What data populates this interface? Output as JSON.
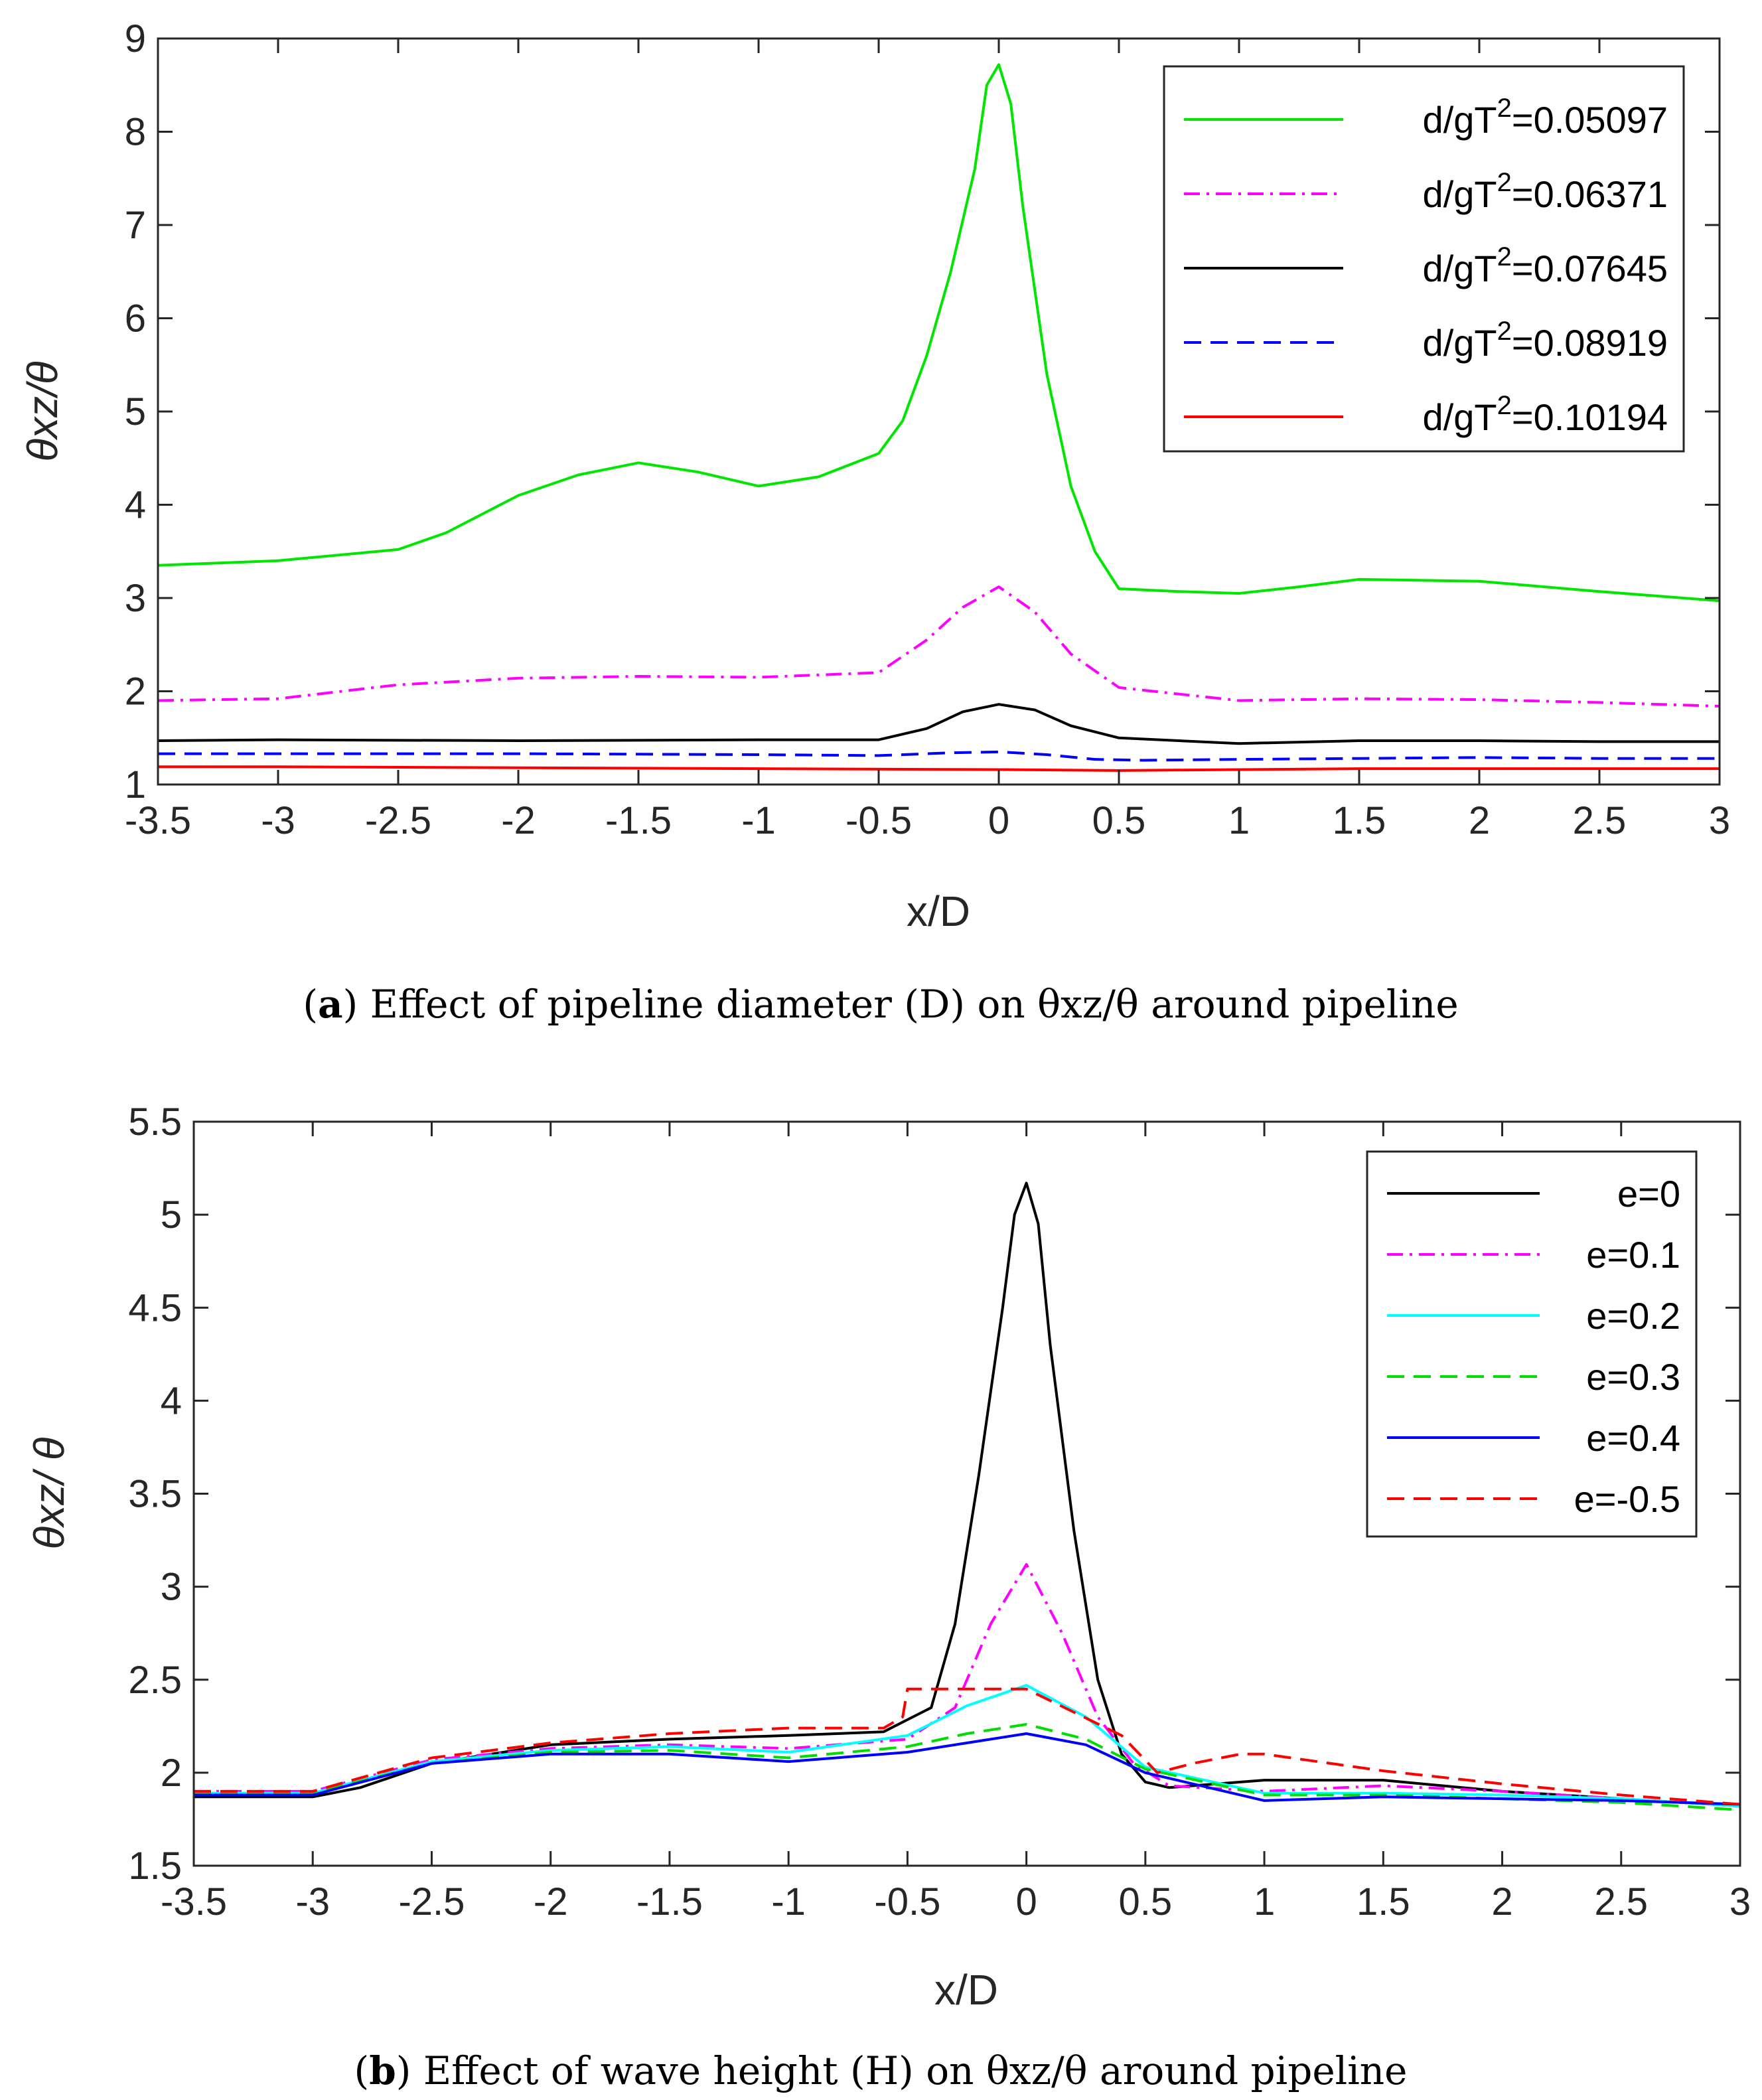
{
  "chart_data": [
    {
      "type": "line",
      "panel": "a",
      "caption_letter": "a",
      "caption_text": "Effect of pipeline diameter (D) on θxz/θ around pipeline",
      "xlabel": "x/D",
      "ylabel": "θxz/θ",
      "xlim": [
        -3.5,
        3
      ],
      "ylim": [
        1,
        9
      ],
      "xticks": [
        -3.5,
        -3,
        -2.5,
        -2,
        -1.5,
        -1,
        -0.5,
        0,
        0.5,
        1,
        1.5,
        2,
        2.5,
        3
      ],
      "yticks": [
        1,
        2,
        3,
        4,
        5,
        6,
        7,
        8,
        9
      ],
      "xtick_labels": [
        "-3.5",
        "-3",
        "-2.5",
        "-2",
        "-1.5",
        "-1",
        "-0.5",
        "0",
        "0.5",
        "1",
        "1.5",
        "2",
        "2.5",
        "3"
      ],
      "ytick_labels": [
        "1",
        "2",
        "3",
        "4",
        "5",
        "6",
        "7",
        "8",
        "9"
      ],
      "legend_position": "top-right",
      "series": [
        {
          "name": "d/gT²=0.05097",
          "label_prefix": "d/gT",
          "label_sup": "2",
          "label_suffix": "=0.05097",
          "color": "#00e600",
          "dash": "solid",
          "x": [
            -3.5,
            -3.0,
            -2.5,
            -2.3,
            -2.0,
            -1.75,
            -1.5,
            -1.25,
            -1.0,
            -0.75,
            -0.5,
            -0.4,
            -0.3,
            -0.2,
            -0.1,
            -0.05,
            0.0,
            0.05,
            0.1,
            0.2,
            0.3,
            0.4,
            0.5,
            0.75,
            1.0,
            1.25,
            1.5,
            2.0,
            2.5,
            3.0
          ],
          "y": [
            3.35,
            3.4,
            3.52,
            3.7,
            4.1,
            4.32,
            4.45,
            4.35,
            4.2,
            4.3,
            4.55,
            4.9,
            5.6,
            6.5,
            7.6,
            8.5,
            8.72,
            8.3,
            7.2,
            5.4,
            4.2,
            3.5,
            3.1,
            3.07,
            3.05,
            3.12,
            3.2,
            3.18,
            3.07,
            2.97
          ]
        },
        {
          "name": "d/gT²=0.06371",
          "label_prefix": "d/gT",
          "label_sup": "2",
          "label_suffix": "=0.06371",
          "color": "#ff00ff",
          "dash": "dashdot",
          "x": [
            -3.5,
            -3.0,
            -2.5,
            -2.0,
            -1.5,
            -1.0,
            -0.5,
            -0.3,
            -0.15,
            0.0,
            0.15,
            0.3,
            0.5,
            1.0,
            1.5,
            2.0,
            2.5,
            3.0
          ],
          "y": [
            1.9,
            1.92,
            2.07,
            2.14,
            2.16,
            2.15,
            2.2,
            2.55,
            2.9,
            3.12,
            2.85,
            2.4,
            2.04,
            1.9,
            1.92,
            1.91,
            1.88,
            1.84
          ]
        },
        {
          "name": "d/gT²=0.07645",
          "label_prefix": "d/gT",
          "label_sup": "2",
          "label_suffix": "=0.07645",
          "color": "#000000",
          "dash": "solid",
          "x": [
            -3.5,
            -3.0,
            -2.0,
            -1.0,
            -0.5,
            -0.3,
            -0.15,
            0.0,
            0.15,
            0.3,
            0.5,
            1.0,
            1.5,
            2.0,
            2.5,
            3.0
          ],
          "y": [
            1.47,
            1.48,
            1.47,
            1.48,
            1.48,
            1.6,
            1.78,
            1.86,
            1.8,
            1.63,
            1.5,
            1.44,
            1.47,
            1.47,
            1.46,
            1.46
          ]
        },
        {
          "name": "d/gT²=0.08919",
          "label_prefix": "d/gT",
          "label_sup": "2",
          "label_suffix": "=0.08919",
          "color": "#0000ff",
          "dash": "dashed",
          "x": [
            -3.5,
            -3.0,
            -2.0,
            -1.0,
            -0.5,
            -0.2,
            0.0,
            0.2,
            0.4,
            0.6,
            1.0,
            1.5,
            2.0,
            2.5,
            3.0
          ],
          "y": [
            1.33,
            1.33,
            1.33,
            1.32,
            1.31,
            1.34,
            1.35,
            1.32,
            1.27,
            1.26,
            1.27,
            1.28,
            1.29,
            1.28,
            1.28
          ]
        },
        {
          "name": "d/gT²=0.10194",
          "label_prefix": "d/gT",
          "label_sup": "2",
          "label_suffix": "=0.10194",
          "color": "#ff0000",
          "dash": "solid",
          "x": [
            -3.5,
            -3.0,
            -2.0,
            -1.0,
            0.0,
            0.5,
            1.0,
            1.5,
            2.0,
            2.5,
            3.0
          ],
          "y": [
            1.19,
            1.19,
            1.18,
            1.17,
            1.16,
            1.15,
            1.16,
            1.17,
            1.17,
            1.17,
            1.17
          ]
        }
      ]
    },
    {
      "type": "line",
      "panel": "b",
      "caption_letter": "b",
      "caption_text": "Effect of wave height (H) on θxz/θ around pipeline",
      "xlabel": "x/D",
      "ylabel": "θxz/ θ",
      "xlim": [
        -3.5,
        3
      ],
      "ylim": [
        1.5,
        5.5
      ],
      "xticks": [
        -3.5,
        -3,
        -2.5,
        -2,
        -1.5,
        -1,
        -0.5,
        0,
        0.5,
        1,
        1.5,
        2,
        2.5,
        3
      ],
      "yticks": [
        1.5,
        2,
        2.5,
        3,
        3.5,
        4,
        4.5,
        5,
        5.5
      ],
      "xtick_labels": [
        "-3.5",
        "-3",
        "-2.5",
        "-2",
        "-1.5",
        "-1",
        "-0.5",
        "0",
        "0.5",
        "1",
        "1.5",
        "2",
        "2.5",
        "3"
      ],
      "ytick_labels": [
        "1.5",
        "2",
        "2.5",
        "3",
        "3.5",
        "4",
        "4.5",
        "5",
        "5.5"
      ],
      "legend_position": "top-right",
      "series": [
        {
          "name": "e=0",
          "label_prefix": "e=0",
          "label_sup": "",
          "label_suffix": "",
          "color": "#000000",
          "dash": "solid",
          "x": [
            -3.5,
            -3.0,
            -2.8,
            -2.5,
            -2.0,
            -1.5,
            -1.0,
            -0.6,
            -0.4,
            -0.3,
            -0.2,
            -0.1,
            -0.05,
            0.0,
            0.05,
            0.1,
            0.2,
            0.3,
            0.4,
            0.5,
            0.6,
            1.0,
            1.5,
            2.0,
            2.5,
            3.0
          ],
          "y": [
            1.87,
            1.87,
            1.92,
            2.05,
            2.15,
            2.18,
            2.2,
            2.22,
            2.35,
            2.8,
            3.6,
            4.5,
            5.0,
            5.17,
            4.95,
            4.3,
            3.3,
            2.5,
            2.1,
            1.95,
            1.92,
            1.96,
            1.96,
            1.9,
            1.86,
            1.82
          ]
        },
        {
          "name": "e=0.1",
          "label_prefix": "e=0.1",
          "label_sup": "",
          "label_suffix": "",
          "color": "#ff00ff",
          "dash": "dashdot",
          "x": [
            -3.5,
            -3.0,
            -2.5,
            -2.0,
            -1.5,
            -1.0,
            -0.5,
            -0.3,
            -0.15,
            0.0,
            0.15,
            0.3,
            0.45,
            0.6,
            1.0,
            1.5,
            2.0,
            2.5,
            3.0
          ],
          "y": [
            1.9,
            1.9,
            2.07,
            2.13,
            2.15,
            2.13,
            2.18,
            2.35,
            2.8,
            3.12,
            2.75,
            2.3,
            2.05,
            1.93,
            1.9,
            1.93,
            1.9,
            1.86,
            1.82
          ]
        },
        {
          "name": "e=0.2",
          "label_prefix": "e=0.2",
          "label_sup": "",
          "label_suffix": "",
          "color": "#00ffff",
          "dash": "solid",
          "x": [
            -3.5,
            -3.0,
            -2.5,
            -2.0,
            -1.5,
            -1.0,
            -0.5,
            -0.25,
            0.0,
            0.25,
            0.5,
            1.0,
            1.5,
            2.0,
            2.5,
            3.0
          ],
          "y": [
            1.89,
            1.89,
            2.06,
            2.12,
            2.14,
            2.11,
            2.2,
            2.36,
            2.47,
            2.3,
            2.03,
            1.89,
            1.89,
            1.88,
            1.86,
            1.82
          ]
        },
        {
          "name": "e=0.3",
          "label_prefix": "e=0.3",
          "label_sup": "",
          "label_suffix": "",
          "color": "#00dd00",
          "dash": "dashed",
          "x": [
            -3.5,
            -3.0,
            -2.5,
            -2.0,
            -1.5,
            -1.0,
            -0.5,
            -0.25,
            0.0,
            0.25,
            0.5,
            1.0,
            1.5,
            2.0,
            2.5,
            3.0
          ],
          "y": [
            1.89,
            1.89,
            2.05,
            2.11,
            2.12,
            2.08,
            2.14,
            2.21,
            2.26,
            2.18,
            2.02,
            1.88,
            1.88,
            1.86,
            1.84,
            1.8
          ]
        },
        {
          "name": "e=0.4",
          "label_prefix": "e=0.4",
          "label_sup": "",
          "label_suffix": "",
          "color": "#0000ff",
          "dash": "solid",
          "x": [
            -3.5,
            -3.0,
            -2.5,
            -2.0,
            -1.5,
            -1.0,
            -0.5,
            -0.25,
            0.0,
            0.25,
            0.5,
            1.0,
            1.5,
            2.0,
            2.5,
            3.0
          ],
          "y": [
            1.88,
            1.88,
            2.05,
            2.1,
            2.1,
            2.06,
            2.11,
            2.16,
            2.21,
            2.15,
            2.0,
            1.85,
            1.87,
            1.86,
            1.85,
            1.83
          ]
        },
        {
          "name": "e=-0.5",
          "label_prefix": "e=-0.5",
          "label_sup": "",
          "label_suffix": "",
          "color": "#ff0000",
          "dash": "dashed",
          "x": [
            -3.5,
            -3.0,
            -2.5,
            -2.0,
            -1.5,
            -1.0,
            -0.6,
            -0.52,
            -0.5,
            0.0,
            0.4,
            0.55,
            0.7,
            0.9,
            1.0,
            1.5,
            2.0,
            2.5,
            3.0
          ],
          "y": [
            1.9,
            1.9,
            2.08,
            2.16,
            2.21,
            2.24,
            2.24,
            2.3,
            2.45,
            2.45,
            2.2,
            2.0,
            2.05,
            2.1,
            2.1,
            2.01,
            1.94,
            1.88,
            1.83
          ]
        }
      ]
    }
  ]
}
